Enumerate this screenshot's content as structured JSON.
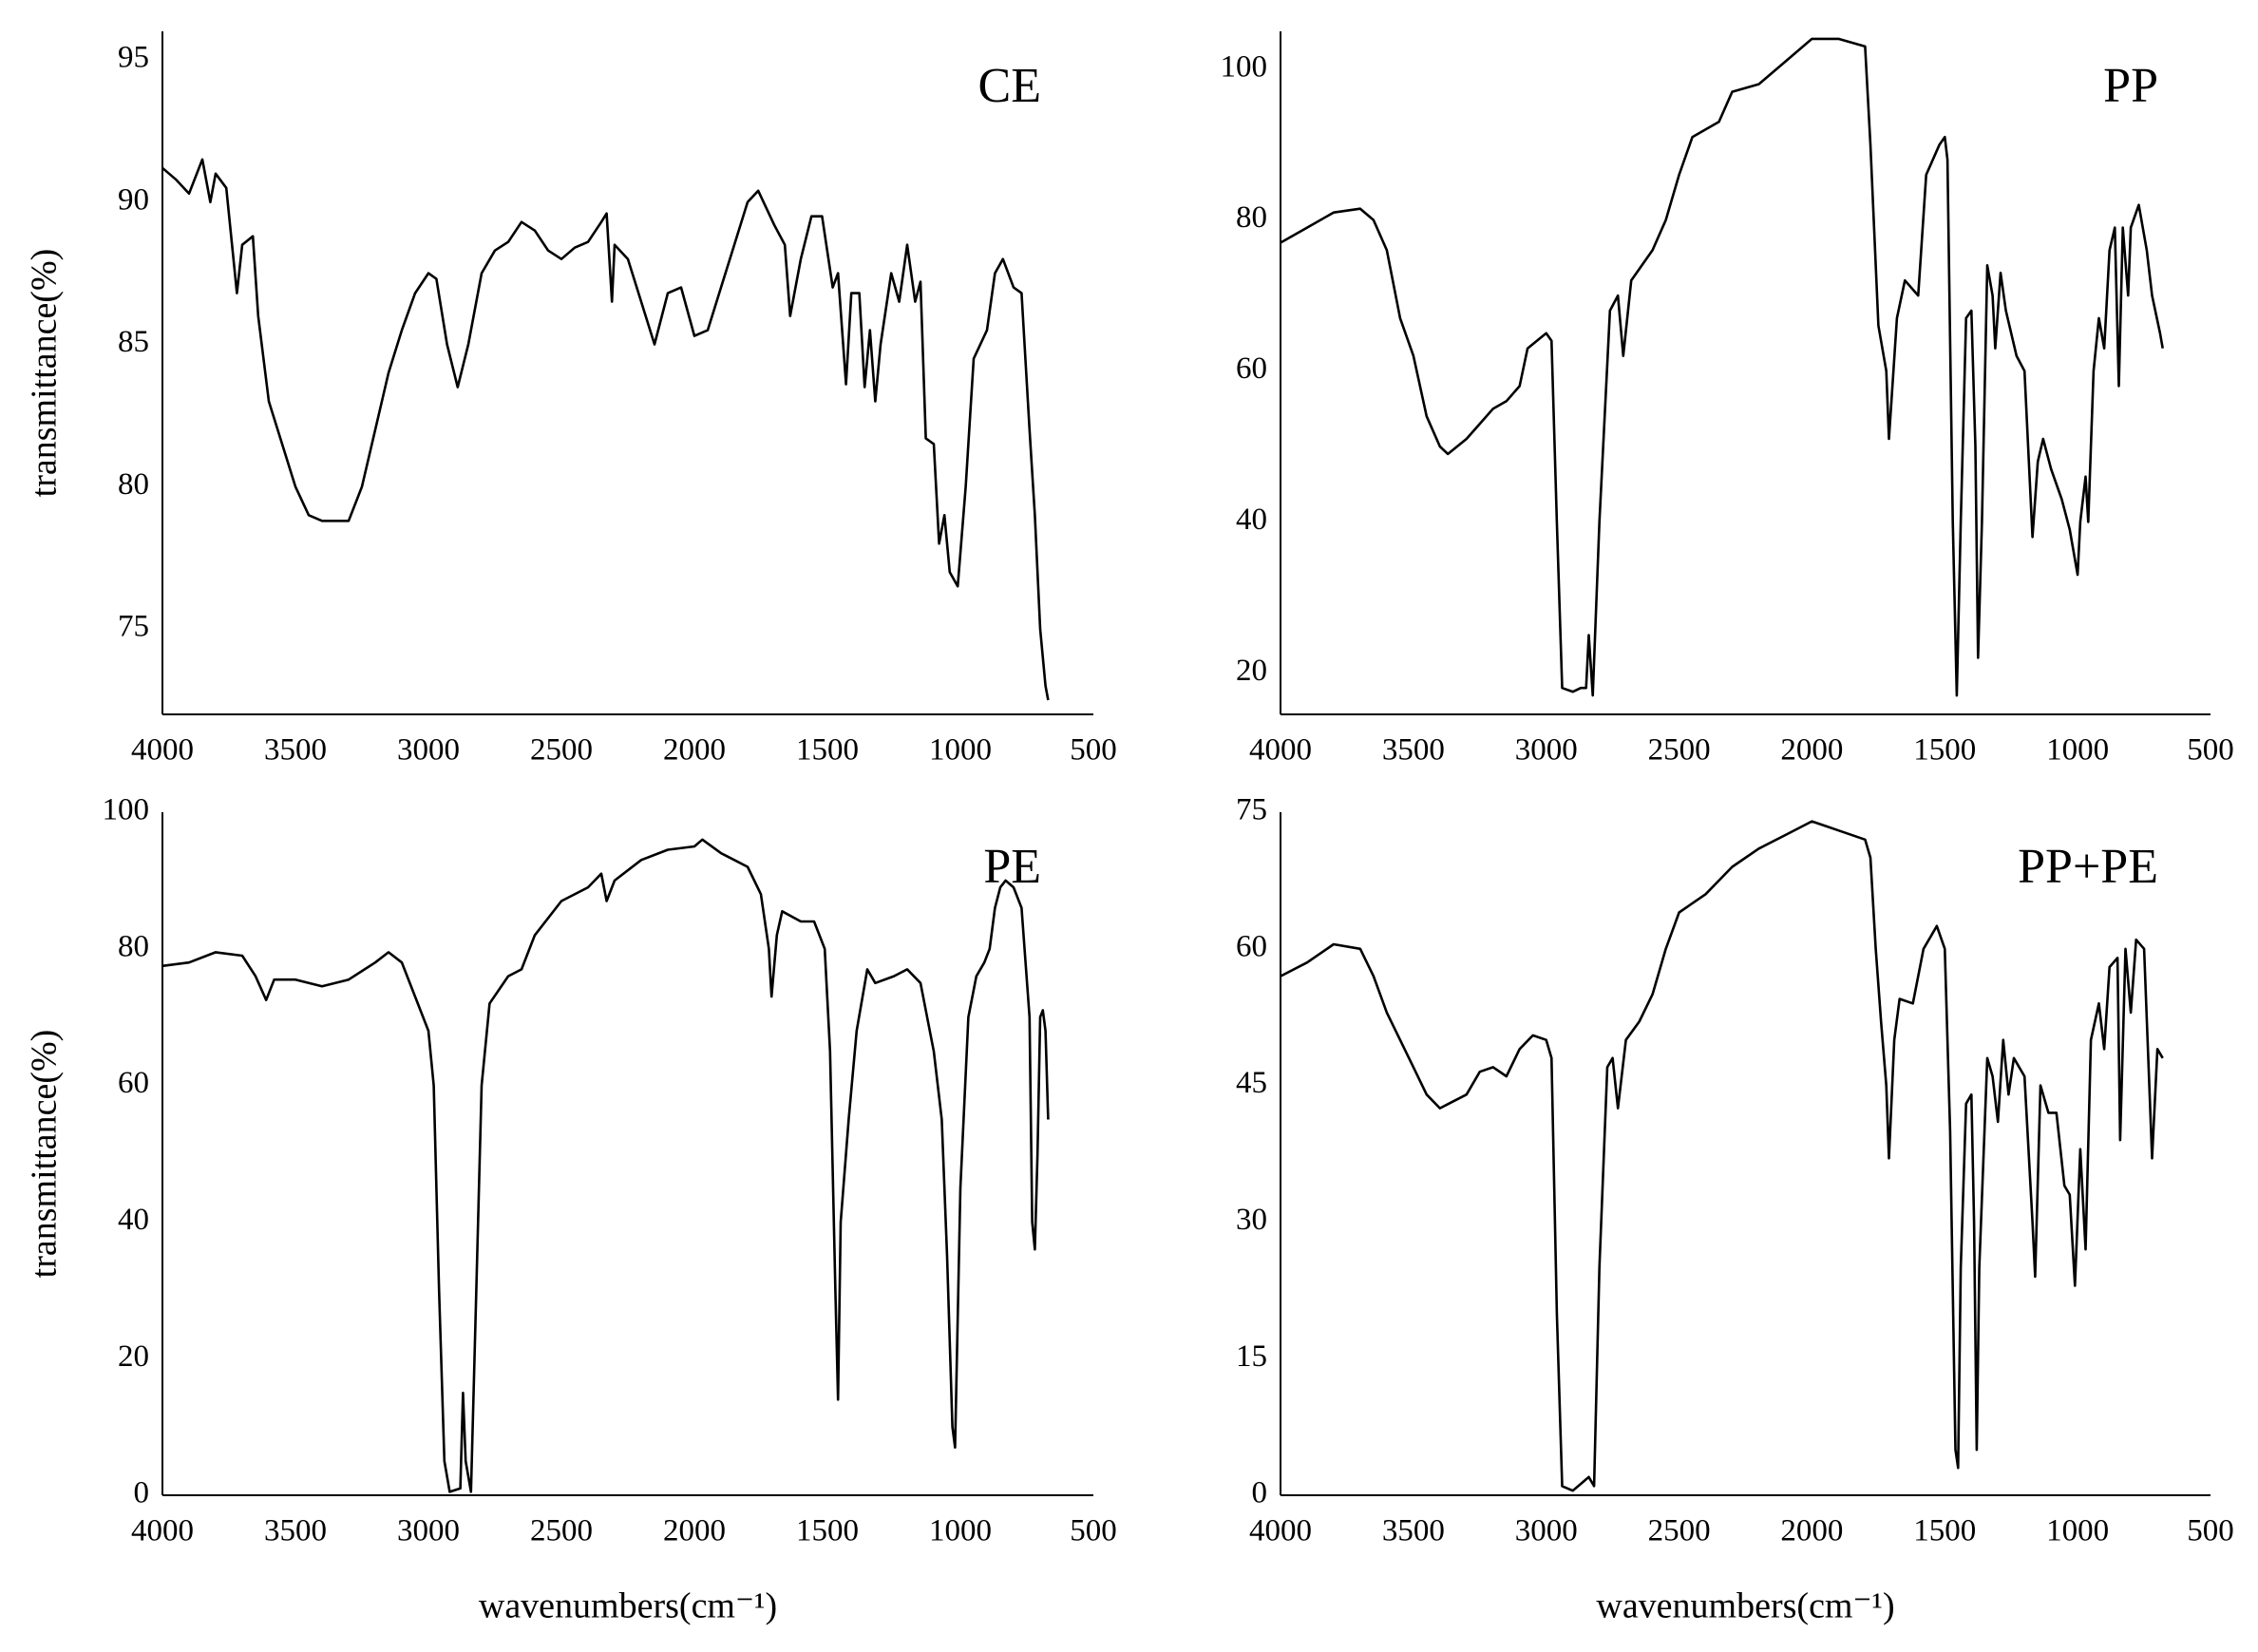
{
  "chart_data": [
    {
      "type": "line",
      "title": "CE",
      "ylabel": "transmittance(%)",
      "xlim": [
        4000,
        500
      ],
      "xticks": [
        4000,
        3500,
        3000,
        2500,
        2000,
        1500,
        1000,
        500
      ],
      "ylim": [
        72,
        96
      ],
      "yticks": [
        75,
        80,
        85,
        90,
        95
      ],
      "x": [
        4000,
        3950,
        3900,
        3850,
        3820,
        3800,
        3760,
        3720,
        3700,
        3660,
        3640,
        3600,
        3550,
        3500,
        3450,
        3400,
        3300,
        3250,
        3200,
        3150,
        3100,
        3050,
        3000,
        2970,
        2930,
        2890,
        2850,
        2800,
        2750,
        2700,
        2650,
        2600,
        2550,
        2500,
        2450,
        2400,
        2350,
        2330,
        2310,
        2300,
        2250,
        2200,
        2150,
        2100,
        2050,
        2000,
        1950,
        1900,
        1850,
        1800,
        1760,
        1700,
        1660,
        1640,
        1600,
        1560,
        1520,
        1480,
        1460,
        1430,
        1410,
        1380,
        1360,
        1340,
        1320,
        1300,
        1260,
        1230,
        1200,
        1170,
        1150,
        1130,
        1100,
        1080,
        1060,
        1040,
        1010,
        980,
        950,
        900,
        870,
        840,
        800,
        770,
        740,
        720,
        700,
        680,
        670
      ],
      "series": [
        {
          "name": "CE",
          "color": "#000000",
          "values": [
            91.2,
            90.8,
            90.3,
            91.5,
            90,
            91,
            90.5,
            86.8,
            88.5,
            88.8,
            86,
            83,
            81.5,
            80,
            79,
            78.8,
            78.8,
            80,
            82,
            84,
            85.5,
            86.8,
            87.5,
            87.3,
            85,
            83.5,
            85,
            87.5,
            88.3,
            88.6,
            89.3,
            89,
            88.3,
            88,
            88.4,
            88.6,
            89.3,
            89.6,
            86.5,
            88.5,
            88,
            86.5,
            85,
            86.8,
            87,
            85.3,
            85.5,
            87,
            88.5,
            90,
            90.4,
            89.2,
            88.5,
            86,
            88,
            89.5,
            89.5,
            87,
            87.5,
            83.6,
            86.8,
            86.8,
            83.5,
            85.5,
            83,
            85,
            87.5,
            86.5,
            88.5,
            86.5,
            87.2,
            81.7,
            81.5,
            78,
            79,
            77,
            76.5,
            80,
            84.5,
            85.5,
            87.5,
            88,
            87,
            86.8,
            82,
            79,
            75,
            73,
            72.5
          ]
        }
      ]
    },
    {
      "type": "line",
      "title": "PP",
      "xlim": [
        4000,
        500
      ],
      "xticks": [
        4000,
        3500,
        3000,
        2500,
        2000,
        1500,
        1000,
        500
      ],
      "ylim": [
        14.5,
        105
      ],
      "yticks": [
        20,
        40,
        60,
        80,
        100
      ],
      "x": [
        4000,
        3900,
        3800,
        3700,
        3650,
        3600,
        3550,
        3500,
        3450,
        3400,
        3370,
        3300,
        3250,
        3200,
        3150,
        3100,
        3070,
        3000,
        2980,
        2960,
        2940,
        2900,
        2870,
        2850,
        2840,
        2825,
        2800,
        2760,
        2730,
        2710,
        2680,
        2600,
        2550,
        2500,
        2450,
        2400,
        2350,
        2300,
        2200,
        2100,
        2000,
        1900,
        1800,
        1780,
        1750,
        1720,
        1710,
        1680,
        1650,
        1600,
        1570,
        1520,
        1500,
        1490,
        1470,
        1455,
        1440,
        1420,
        1400,
        1385,
        1375,
        1360,
        1340,
        1320,
        1310,
        1290,
        1270,
        1250,
        1230,
        1200,
        1170,
        1150,
        1130,
        1100,
        1060,
        1030,
        1000,
        990,
        970,
        960,
        940,
        920,
        900,
        880,
        860,
        845,
        830,
        810,
        800,
        770,
        740,
        720,
        690,
        680
      ],
      "series": [
        {
          "name": "PP",
          "color": "#000000",
          "values": [
            77,
            79,
            81,
            81.5,
            80,
            76,
            67,
            62,
            54,
            50,
            49,
            51,
            53,
            55,
            56,
            58,
            63,
            65,
            64,
            40,
            18,
            17.5,
            18,
            18,
            25,
            17,
            40,
            68,
            70,
            62,
            72,
            76,
            80,
            86,
            91,
            92,
            93,
            97,
            98,
            101,
            104,
            104,
            103,
            90,
            66,
            60,
            51,
            67,
            72,
            70,
            86,
            90,
            91,
            88,
            40,
            17,
            40,
            67,
            68,
            50,
            22,
            40,
            74,
            70,
            63,
            73,
            68,
            65,
            62,
            60,
            38,
            48,
            51,
            47,
            43,
            39,
            33,
            40,
            46,
            40,
            60,
            67,
            63,
            76,
            79,
            58,
            79,
            70,
            79,
            82,
            76,
            70,
            65,
            63
          ]
        }
      ]
    },
    {
      "type": "line",
      "title": "PE",
      "ylabel": "transmittance(%)",
      "xlabel": "wavenumbers(cm⁻¹)",
      "xlim": [
        4000,
        500
      ],
      "xticks": [
        4000,
        3500,
        3000,
        2500,
        2000,
        1500,
        1000,
        500
      ],
      "ylim": [
        0,
        100
      ],
      "yticks": [
        0,
        20,
        40,
        60,
        80,
        100
      ],
      "x": [
        4000,
        3900,
        3800,
        3700,
        3650,
        3610,
        3580,
        3500,
        3400,
        3300,
        3200,
        3150,
        3100,
        3050,
        3000,
        2980,
        2960,
        2940,
        2920,
        2880,
        2870,
        2860,
        2840,
        2820,
        2800,
        2770,
        2700,
        2650,
        2600,
        2500,
        2400,
        2350,
        2330,
        2300,
        2200,
        2100,
        2000,
        1970,
        1900,
        1800,
        1750,
        1720,
        1710,
        1690,
        1670,
        1600,
        1550,
        1510,
        1490,
        1470,
        1460,
        1450,
        1420,
        1390,
        1350,
        1320,
        1250,
        1200,
        1150,
        1100,
        1070,
        1050,
        1030,
        1020,
        1000,
        970,
        940,
        910,
        890,
        870,
        850,
        830,
        800,
        770,
        740,
        730,
        720,
        710,
        700,
        690,
        680,
        670
      ],
      "series": [
        {
          "name": "PE",
          "color": "#000000",
          "values": [
            77.5,
            78,
            79.5,
            79,
            76,
            72.5,
            75.5,
            75.5,
            74.5,
            75.5,
            78,
            79.5,
            78,
            73,
            68,
            60,
            30,
            5,
            0.5,
            1,
            15,
            5,
            0.5,
            30,
            60,
            72,
            76,
            77,
            82,
            87,
            89,
            91,
            87,
            90,
            93,
            94.5,
            95,
            96,
            94,
            92,
            88,
            80,
            73,
            82,
            85.5,
            84,
            84,
            80,
            65,
            30,
            14,
            40,
            55,
            68,
            77,
            75,
            76,
            77,
            75,
            65,
            55,
            35,
            10,
            7,
            45,
            70,
            76,
            78,
            80,
            86,
            89,
            90,
            89,
            86,
            70,
            40,
            36,
            50,
            70,
            71,
            68,
            55
          ]
        }
      ]
    },
    {
      "type": "line",
      "title": "PP+PE",
      "xlabel": "wavenumbers(cm⁻¹)",
      "xlim": [
        4000,
        500
      ],
      "xticks": [
        4000,
        3500,
        3000,
        2500,
        2000,
        1500,
        1000,
        500
      ],
      "ylim": [
        0,
        75
      ],
      "yticks": [
        0,
        15,
        30,
        45,
        60,
        75
      ],
      "x": [
        4000,
        3900,
        3800,
        3700,
        3650,
        3600,
        3500,
        3450,
        3400,
        3300,
        3250,
        3200,
        3150,
        3100,
        3050,
        3000,
        2980,
        2960,
        2940,
        2900,
        2860,
        2840,
        2820,
        2800,
        2770,
        2750,
        2730,
        2700,
        2650,
        2600,
        2550,
        2500,
        2400,
        2350,
        2300,
        2200,
        2100,
        2000,
        1950,
        1900,
        1800,
        1780,
        1760,
        1740,
        1720,
        1710,
        1690,
        1670,
        1620,
        1580,
        1530,
        1500,
        1480,
        1460,
        1450,
        1440,
        1420,
        1400,
        1390,
        1380,
        1370,
        1340,
        1320,
        1300,
        1280,
        1260,
        1240,
        1200,
        1170,
        1160,
        1140,
        1110,
        1080,
        1050,
        1030,
        1010,
        990,
        970,
        950,
        920,
        900,
        880,
        850,
        840,
        820,
        800,
        780,
        750,
        720,
        700,
        680
      ],
      "series": [
        {
          "name": "PP+PE",
          "color": "#000000",
          "values": [
            57,
            58.5,
            60.5,
            60,
            57,
            53,
            47,
            44,
            42.5,
            44,
            46.5,
            47,
            46,
            49,
            50.5,
            50,
            48,
            20,
            1,
            0.5,
            1.5,
            2,
            1,
            25,
            47,
            48,
            42.5,
            50,
            52,
            55,
            60,
            64,
            66,
            67.5,
            69,
            71,
            72.5,
            74,
            73.5,
            73,
            72,
            70,
            60,
            52,
            45,
            37,
            50,
            54.5,
            54,
            60,
            62.5,
            60,
            40,
            5,
            3,
            25,
            43,
            44,
            30,
            5,
            25,
            48,
            46,
            41,
            50,
            44,
            48,
            46,
            30,
            24,
            45,
            42,
            42,
            34,
            33,
            23,
            38,
            27,
            50,
            54,
            49,
            58,
            59,
            39,
            60,
            53,
            61,
            60,
            37,
            49,
            48
          ]
        }
      ]
    }
  ]
}
